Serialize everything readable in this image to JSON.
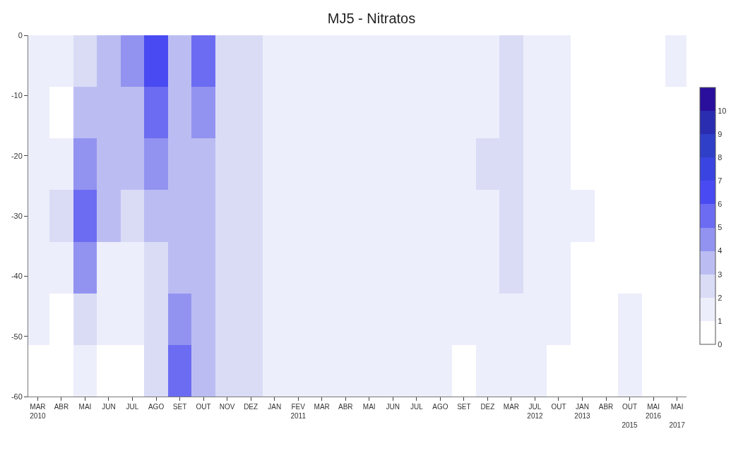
{
  "chart_data": {
    "type": "heatmap",
    "title": "MJ5 - Nitratos",
    "categories": [
      "MAR\n2010",
      "ABR",
      "MAI",
      "JUN",
      "JUL",
      "AGO",
      "SET",
      "OUT",
      "NOV",
      "DEZ",
      "JAN",
      "FEV\n2011",
      "MAR",
      "ABR",
      "MAI",
      "JUN",
      "JUL",
      "AGO",
      "SET",
      "DEZ",
      "MAR",
      "JUL\n2012",
      "OUT",
      "JAN\n2013",
      "ABR",
      "OUT\n\n2015",
      "MAI\n2016",
      "MAI\n\n2017"
    ],
    "ylim": [
      -60,
      0
    ],
    "yticks": [
      0,
      -10,
      -20,
      -30,
      -40,
      -50,
      -60
    ],
    "cells": [
      [
        1.5,
        1.5,
        2.5,
        3.5,
        4.5,
        6.5,
        3.5,
        5.5,
        2.5,
        2.5,
        1.5,
        1.5,
        1.5,
        1.5,
        1.5,
        1.5,
        1.5,
        1.5,
        1.5,
        1.5,
        2.5,
        1.5,
        1.5,
        0.5,
        0.5,
        0.5,
        0.5,
        1.5
      ],
      [
        1.5,
        0.5,
        3.5,
        3.5,
        3.5,
        5.5,
        3.5,
        4.5,
        2.5,
        2.5,
        1.5,
        1.5,
        1.5,
        1.5,
        1.5,
        1.5,
        1.5,
        1.5,
        1.5,
        1.5,
        2.5,
        1.5,
        1.5,
        0.5,
        0.5,
        0.5,
        0.5,
        0.5
      ],
      [
        1.5,
        1.5,
        4.5,
        3.5,
        3.5,
        4.5,
        3.5,
        3.5,
        2.5,
        2.5,
        1.5,
        1.5,
        1.5,
        1.5,
        1.5,
        1.5,
        1.5,
        1.5,
        1.5,
        2.5,
        2.5,
        1.5,
        1.5,
        0.5,
        0.5,
        0.5,
        0.5,
        0.5
      ],
      [
        1.5,
        2.5,
        5.5,
        3.5,
        2.5,
        3.5,
        3.5,
        3.5,
        2.5,
        2.5,
        1.5,
        1.5,
        1.5,
        1.5,
        1.5,
        1.5,
        1.5,
        1.5,
        1.5,
        1.5,
        2.5,
        1.5,
        1.5,
        1.5,
        0.5,
        0.5,
        0.5,
        0.5
      ],
      [
        1.5,
        1.5,
        4.5,
        1.5,
        1.5,
        2.5,
        3.5,
        3.5,
        2.5,
        2.5,
        1.5,
        1.5,
        1.5,
        1.5,
        1.5,
        1.5,
        1.5,
        1.5,
        1.5,
        1.5,
        2.5,
        1.5,
        1.5,
        0.5,
        0.5,
        0.5,
        0.5,
        0.5
      ],
      [
        1.5,
        0.5,
        2.5,
        1.5,
        1.5,
        2.5,
        4.5,
        3.5,
        2.5,
        2.5,
        1.5,
        1.5,
        1.5,
        1.5,
        1.5,
        1.5,
        1.5,
        1.5,
        1.5,
        1.5,
        1.5,
        1.5,
        1.5,
        0.5,
        0.5,
        1.5,
        0.5,
        0.5
      ],
      [
        0.5,
        0.5,
        1.5,
        0.5,
        0.5,
        2.5,
        5.5,
        3.5,
        2.5,
        2.5,
        1.5,
        1.5,
        1.5,
        1.5,
        1.5,
        1.5,
        1.5,
        1.5,
        0.5,
        1.5,
        1.5,
        1.5,
        0.5,
        0.5,
        0.5,
        1.5,
        0.5,
        0.5
      ]
    ],
    "clim": [
      0,
      11
    ],
    "cticks": [
      0,
      1,
      2,
      3,
      4,
      5,
      6,
      7,
      8,
      9,
      10
    ]
  }
}
